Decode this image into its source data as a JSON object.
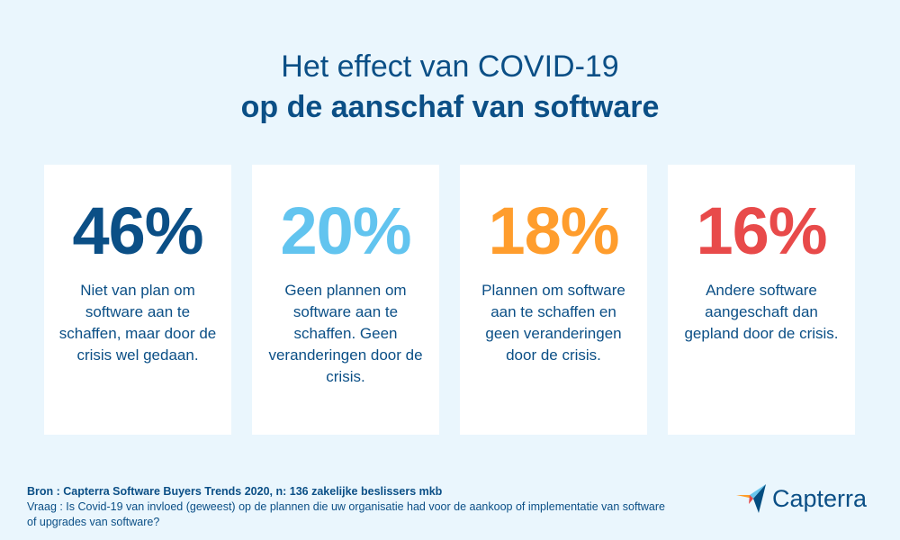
{
  "header": {
    "title_line1": "Het effect van COVID-19",
    "title_line2": "op de aanschaf van software"
  },
  "cards": [
    {
      "value": "46%",
      "description": "Niet van plan om software aan te schaffen, maar door de crisis wel gedaan.",
      "color": "#0b4f86"
    },
    {
      "value": "20%",
      "description": "Geen plannen om software aan te schaffen. Geen veranderingen door de crisis.",
      "color": "#62c4ef"
    },
    {
      "value": "18%",
      "description": "Plannen om software aan te schaffen en geen veranderingen door de crisis.",
      "color": "#ff9d2d"
    },
    {
      "value": "16%",
      "description": "Andere software aangeschaft dan gepland door de crisis.",
      "color": "#e84a4a"
    }
  ],
  "footer": {
    "source": "Bron : Capterra Software Buyers Trends 2020, n: 136 zakelijke beslissers mkb",
    "question": "Vraag : Is Covid-19 van invloed (geweest) op de plannen die uw organisatie had voor de aankoop of implementatie van software of upgrades van software?"
  },
  "logo": {
    "name": "Capterra",
    "icon": "capterra-arrow-icon",
    "colors": [
      "#ff9d28",
      "#68c5ed",
      "#044d80",
      "#e54747"
    ]
  }
}
